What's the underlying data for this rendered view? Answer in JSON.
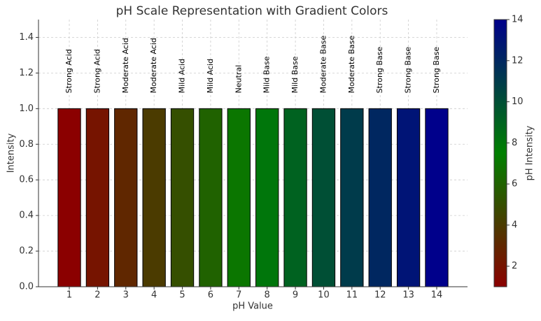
{
  "chart_data": {
    "type": "bar",
    "title": "pH Scale Representation with Gradient Colors",
    "xlabel": "pH Value",
    "ylabel": "Intensity",
    "x": [
      1,
      2,
      3,
      4,
      5,
      6,
      7,
      8,
      9,
      10,
      11,
      12,
      13,
      14
    ],
    "values": [
      1,
      1,
      1,
      1,
      1,
      1,
      1,
      1,
      1,
      1,
      1,
      1,
      1,
      1
    ],
    "colors": [
      "#8b0000",
      "#761400",
      "#602700",
      "#4b3b00",
      "#354f00",
      "#206200",
      "#0b7600",
      "#00760b",
      "#006220",
      "#004f35",
      "#003b4b",
      "#002760",
      "#001476",
      "#00008b"
    ],
    "annotations": [
      "Strong Acid",
      "Strong Acid",
      "Moderate Acid",
      "Moderate Acid",
      "Mild Acid",
      "Mild Acid",
      "Neutral",
      "Mild Base",
      "Mild Base",
      "Moderate Base",
      "Moderate Base",
      "Strong Base",
      "Strong Base",
      "Strong Base"
    ],
    "xlim": [
      -0.09,
      15.09
    ],
    "xticks": [
      1,
      2,
      3,
      4,
      5,
      6,
      7,
      8,
      9,
      10,
      11,
      12,
      13,
      14
    ],
    "ylim": [
      0,
      1.5
    ],
    "yticks": [
      {
        "value": 0,
        "label": "0.0"
      },
      {
        "value": 0.2,
        "label": "0.2"
      },
      {
        "value": 0.4,
        "label": "0.4"
      },
      {
        "value": 0.6,
        "label": "0.6"
      },
      {
        "value": 0.8,
        "label": "0.8"
      },
      {
        "value": 1,
        "label": "1.0"
      },
      {
        "value": 1.2,
        "label": "1.2"
      },
      {
        "value": 1.4,
        "label": "1.4"
      }
    ],
    "grid": true,
    "colorbar": {
      "label": "pH Intensity",
      "lim": [
        1,
        14
      ],
      "ticks": [
        2,
        4,
        6,
        8,
        10,
        12,
        14
      ],
      "colors": [
        "#8b0000",
        "#008000",
        "#00008b"
      ]
    }
  }
}
